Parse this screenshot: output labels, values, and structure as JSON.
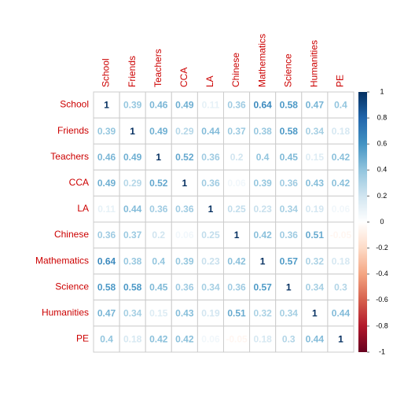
{
  "chart_data": {
    "type": "heatmap",
    "categories": [
      "School",
      "Friends",
      "Teachers",
      "CCA",
      "LA",
      "Chinese",
      "Mathematics",
      "Science",
      "Humanities",
      "PE"
    ],
    "values": [
      [
        1,
        0.39,
        0.46,
        0.49,
        0.11,
        0.36,
        0.64,
        0.58,
        0.47,
        0.4
      ],
      [
        0.39,
        1,
        0.49,
        0.29,
        0.44,
        0.37,
        0.38,
        0.58,
        0.34,
        0.18
      ],
      [
        0.46,
        0.49,
        1,
        0.52,
        0.36,
        0.2,
        0.4,
        0.45,
        0.15,
        0.42
      ],
      [
        0.49,
        0.29,
        0.52,
        1,
        0.36,
        0.06,
        0.39,
        0.36,
        0.43,
        0.42
      ],
      [
        0.11,
        0.44,
        0.36,
        0.36,
        1,
        0.25,
        0.23,
        0.34,
        0.19,
        0.06
      ],
      [
        0.36,
        0.37,
        0.2,
        0.06,
        0.25,
        1,
        0.42,
        0.36,
        0.51,
        -0.05
      ],
      [
        0.64,
        0.38,
        0.4,
        0.39,
        0.23,
        0.42,
        1,
        0.57,
        0.32,
        0.18
      ],
      [
        0.58,
        0.58,
        0.45,
        0.36,
        0.34,
        0.36,
        0.57,
        1,
        0.34,
        0.3
      ],
      [
        0.47,
        0.34,
        0.15,
        0.43,
        0.19,
        0.51,
        0.32,
        0.34,
        1,
        0.44
      ],
      [
        0.4,
        0.18,
        0.42,
        0.42,
        0.06,
        -0.05,
        0.18,
        0.3,
        0.44,
        1
      ]
    ],
    "clim": [
      -1,
      1
    ],
    "colorbar_ticks": [
      1,
      0.8,
      0.6,
      0.4,
      0.2,
      0,
      -0.2,
      -0.4,
      -0.6,
      -0.8,
      -1
    ],
    "colormap": [
      "#67001F",
      "#B2182B",
      "#D6604D",
      "#F4A582",
      "#FDDBC7",
      "#FFFFFF",
      "#D1E5F0",
      "#92C5DE",
      "#4393C3",
      "#2166AC",
      "#053061"
    ],
    "label_color": "#cc0000"
  }
}
